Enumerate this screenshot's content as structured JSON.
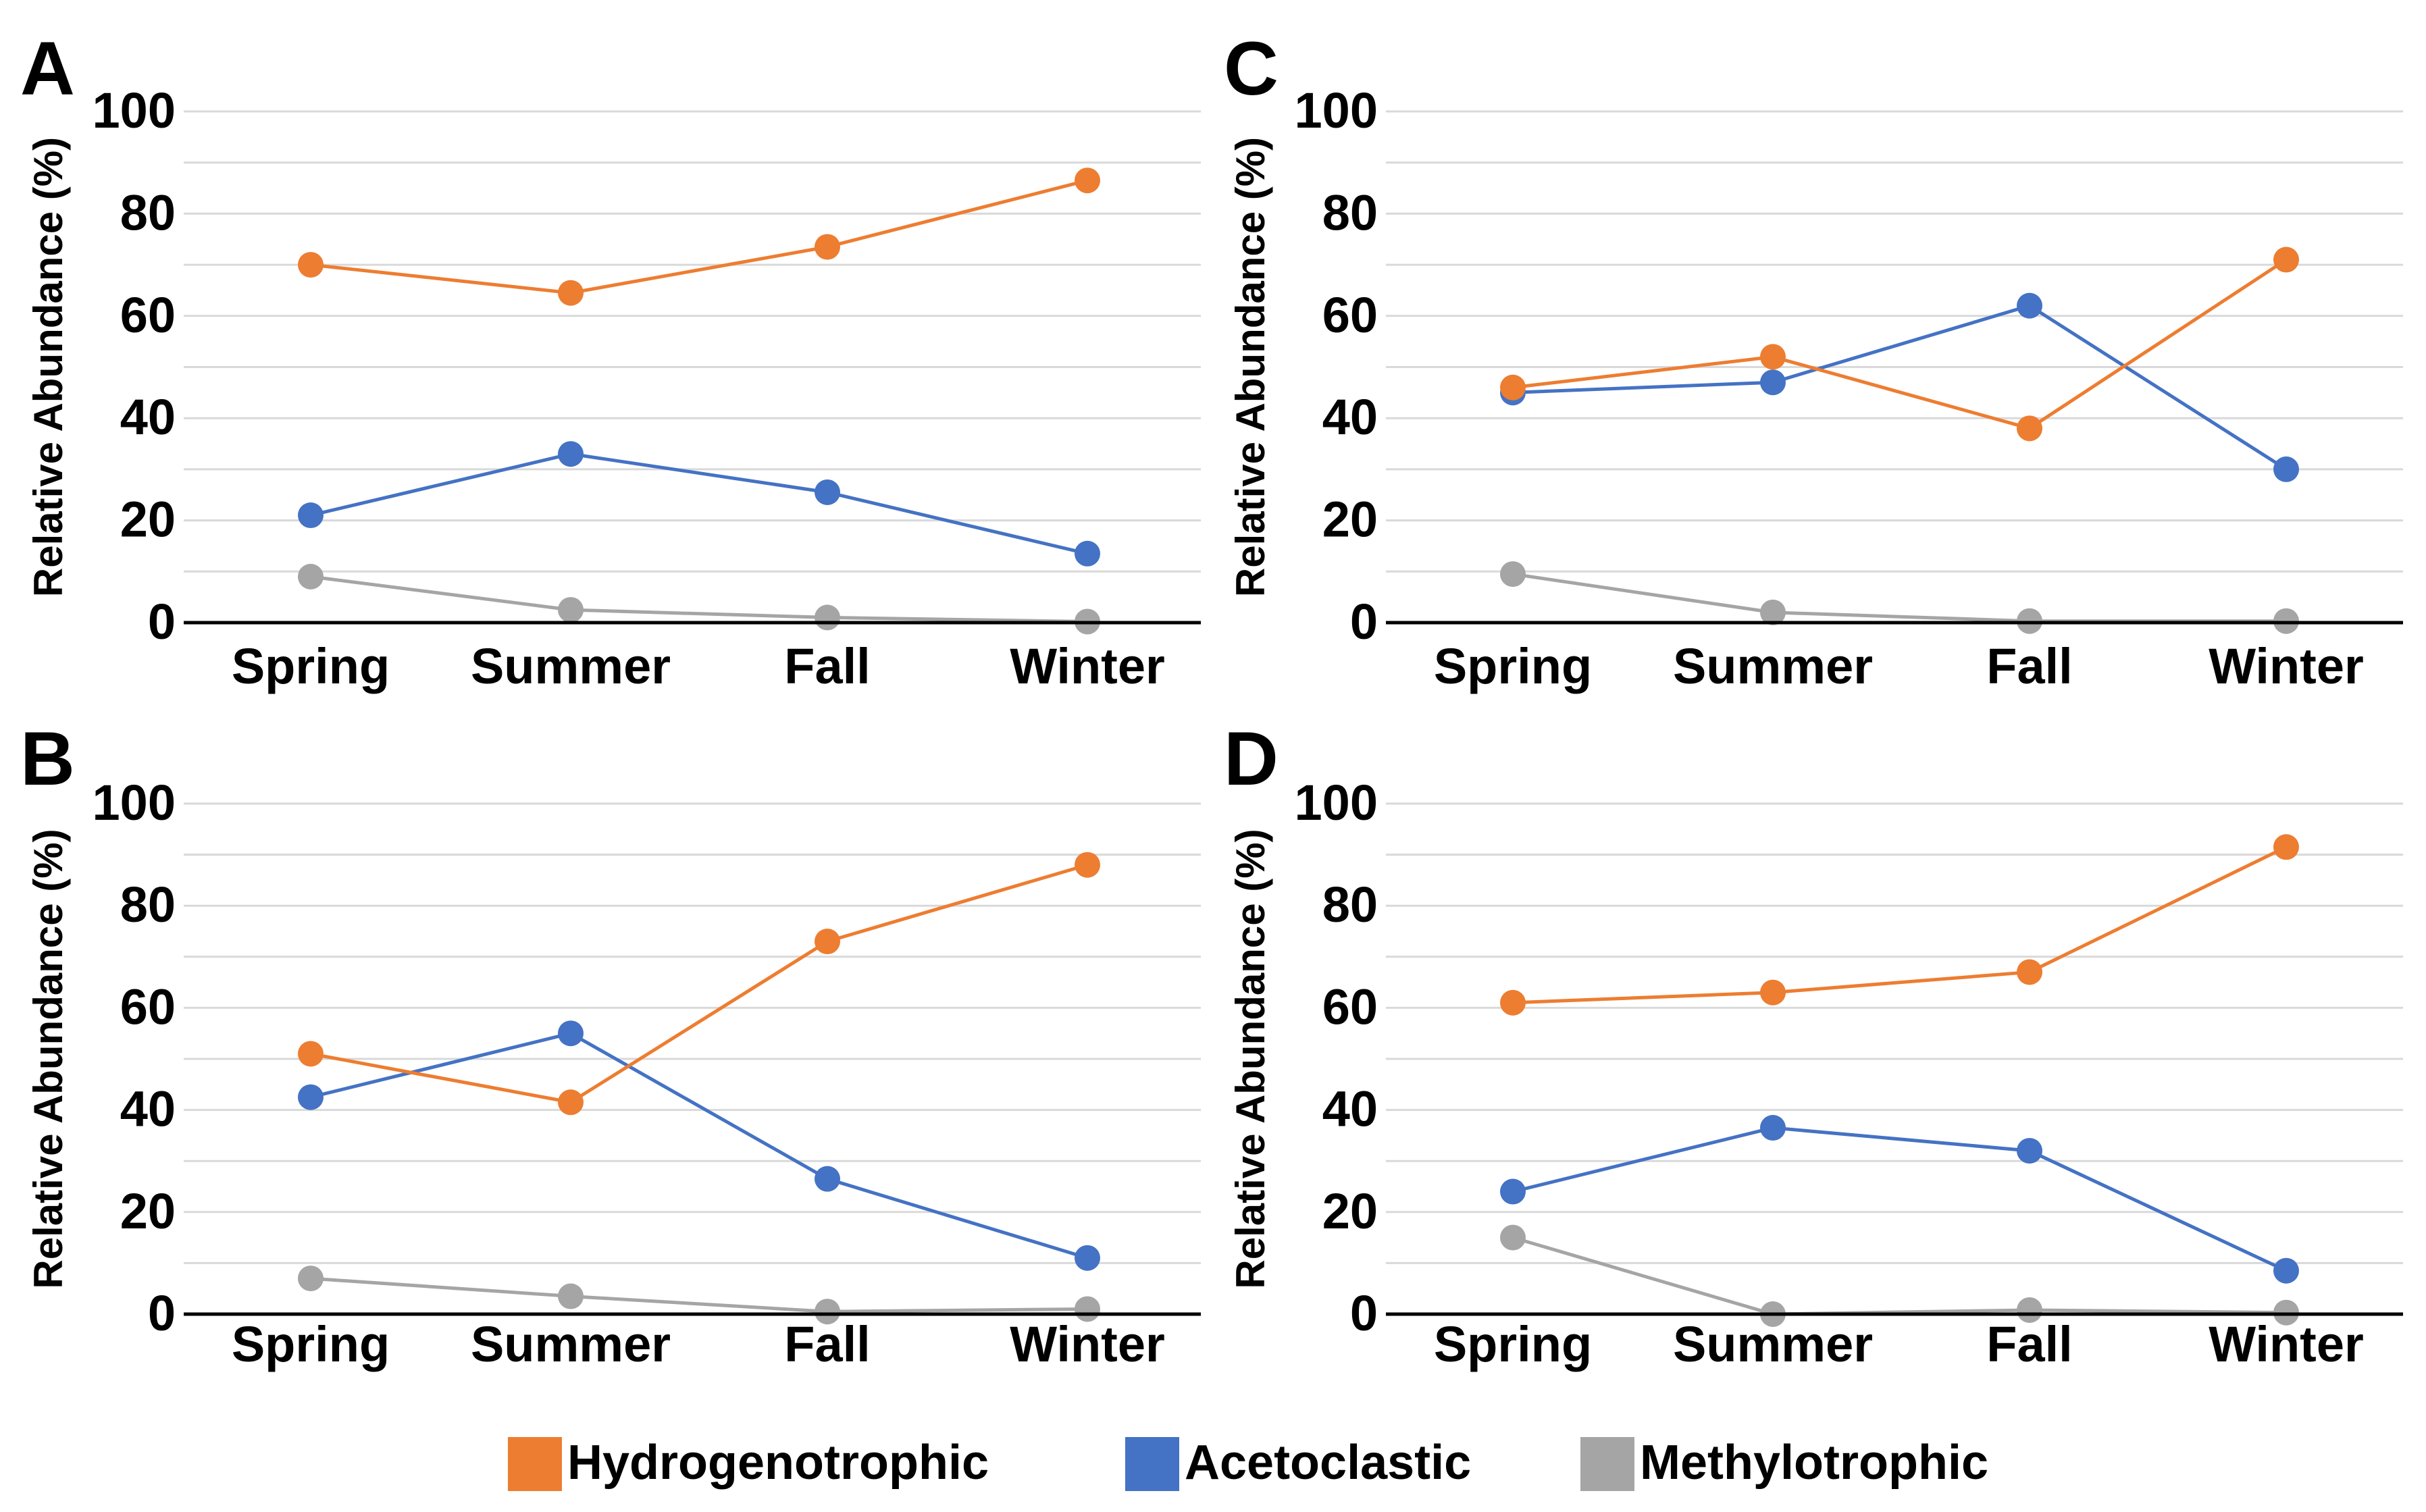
{
  "legend": {
    "items": [
      {
        "label": "Hydrogenotrophic",
        "color": "#ED7D31"
      },
      {
        "label": "Acetoclastic",
        "color": "#4472C4"
      },
      {
        "label": "Methylotrophic",
        "color": "#A5A5A5"
      }
    ]
  },
  "chart_data": [
    {
      "panel": "A",
      "type": "line",
      "categories": [
        "Spring",
        "Summer",
        "Fall",
        "Winter"
      ],
      "ylabel": "Relative Abundance (%)",
      "xlabel": "",
      "ylim": [
        0,
        100
      ],
      "yticks": [
        "0",
        "20",
        "40",
        "60",
        "80",
        "100"
      ],
      "grid": true,
      "legend": "bottom",
      "series": [
        {
          "name": "Hydrogenotrophic",
          "values": [
            70,
            64.5,
            73.5,
            86.5
          ]
        },
        {
          "name": "Acetoclastic",
          "values": [
            21,
            33,
            25.5,
            13.5
          ]
        },
        {
          "name": "Methylotrophic",
          "values": [
            9,
            2.5,
            1,
            0.2
          ]
        }
      ]
    },
    {
      "panel": "C",
      "type": "line",
      "categories": [
        "Spring",
        "Summer",
        "Fall",
        "Winter"
      ],
      "ylabel": "Relative Abundance (%)",
      "xlabel": "",
      "ylim": [
        0,
        100
      ],
      "yticks": [
        "0",
        "20",
        "40",
        "60",
        "80",
        "100"
      ],
      "grid": true,
      "legend": "bottom",
      "series": [
        {
          "name": "Hydrogenotrophic",
          "values": [
            46,
            52,
            38,
            71
          ]
        },
        {
          "name": "Acetoclastic",
          "values": [
            45,
            47,
            62,
            30
          ]
        },
        {
          "name": "Methylotrophic",
          "values": [
            9.5,
            2,
            0.3,
            0.3
          ]
        }
      ]
    },
    {
      "panel": "B",
      "type": "line",
      "categories": [
        "Spring",
        "Summer",
        "Fall",
        "Winter"
      ],
      "ylabel": "Relative Abundance (%)",
      "xlabel": "",
      "ylim": [
        0,
        100
      ],
      "yticks": [
        "0",
        "20",
        "40",
        "60",
        "80",
        "100"
      ],
      "grid": true,
      "legend": "bottom",
      "series": [
        {
          "name": "Hydrogenotrophic",
          "values": [
            51,
            41.5,
            73,
            88
          ]
        },
        {
          "name": "Acetoclastic",
          "values": [
            42.5,
            55,
            26.5,
            11
          ]
        },
        {
          "name": "Methylotrophic",
          "values": [
            7,
            3.5,
            0.5,
            1
          ]
        }
      ]
    },
    {
      "panel": "D",
      "type": "line",
      "categories": [
        "Spring",
        "Summer",
        "Fall",
        "Winter"
      ],
      "ylabel": "Relative Abundance (%)",
      "xlabel": "",
      "ylim": [
        0,
        100
      ],
      "yticks": [
        "0",
        "20",
        "40",
        "60",
        "80",
        "100"
      ],
      "grid": true,
      "legend": "bottom",
      "series": [
        {
          "name": "Hydrogenotrophic",
          "values": [
            61,
            63,
            67,
            91.5
          ]
        },
        {
          "name": "Acetoclastic",
          "values": [
            24,
            36.5,
            32,
            8.5
          ]
        },
        {
          "name": "Methylotrophic",
          "values": [
            15,
            0,
            0.8,
            0.3
          ]
        }
      ]
    }
  ]
}
